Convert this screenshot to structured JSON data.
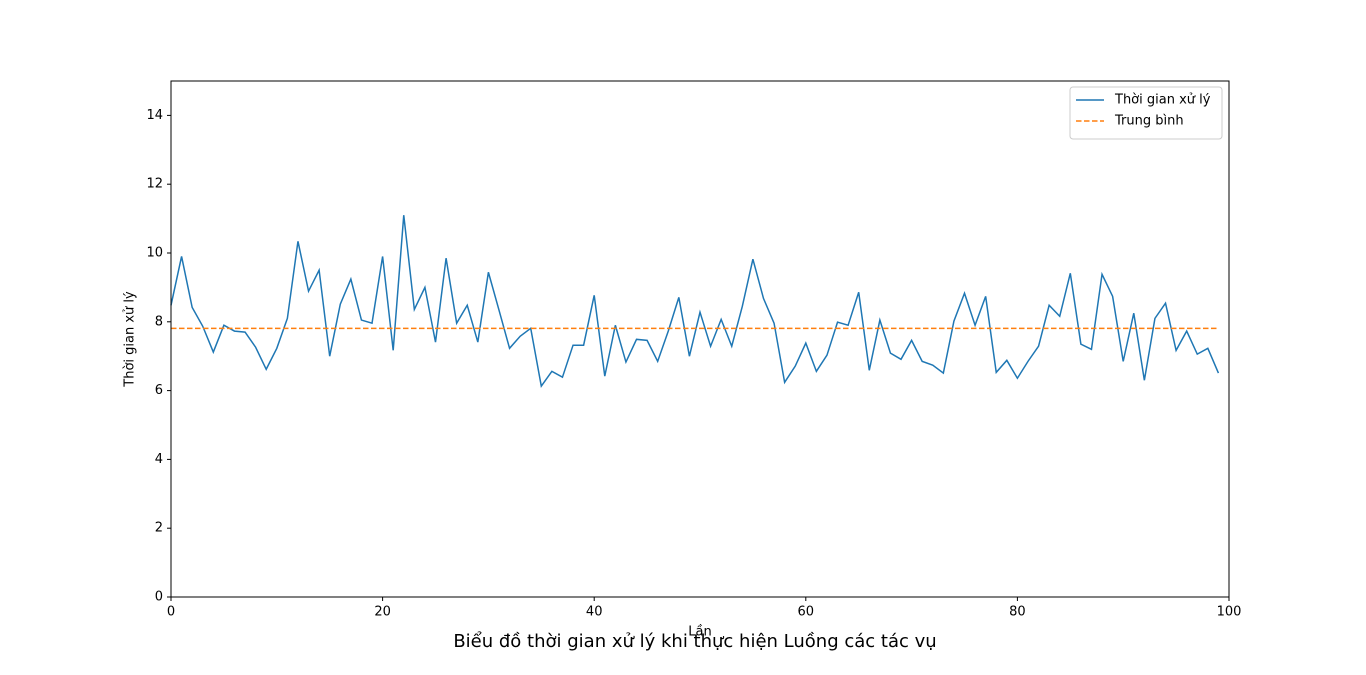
{
  "chart_data": {
    "type": "line",
    "title": "Biểu đồ thời gian xử lý khi thực hiện Luồng các tác vụ",
    "xlabel": "Lần",
    "ylabel": "Thời gian xử lý",
    "x": [
      0,
      1,
      2,
      3,
      4,
      5,
      6,
      7,
      8,
      9,
      10,
      11,
      12,
      13,
      14,
      15,
      16,
      17,
      18,
      19,
      20,
      21,
      22,
      23,
      24,
      25,
      26,
      27,
      28,
      29,
      30,
      31,
      32,
      33,
      34,
      35,
      36,
      37,
      38,
      39,
      40,
      41,
      42,
      43,
      44,
      45,
      46,
      47,
      48,
      49,
      50,
      51,
      52,
      53,
      54,
      55,
      56,
      57,
      58,
      59,
      60,
      61,
      62,
      63,
      64,
      65,
      66,
      67,
      68,
      69,
      70,
      71,
      72,
      73,
      74,
      75,
      76,
      77,
      78,
      79,
      80,
      81,
      82,
      83,
      84,
      85,
      86,
      87,
      88,
      89,
      90,
      91,
      92,
      93,
      94,
      95,
      96,
      97,
      98,
      99
    ],
    "series": [
      {
        "name": "Thời gian xử lý",
        "color": "#1f77b4",
        "values": [
          8.48,
          9.9,
          8.42,
          7.87,
          7.12,
          7.9,
          7.73,
          7.7,
          7.26,
          6.62,
          7.23,
          8.1,
          10.34,
          8.89,
          9.5,
          7.0,
          8.51,
          9.24,
          8.05,
          7.96,
          9.9,
          7.17,
          11.1,
          8.36,
          9.0,
          7.41,
          9.85,
          7.96,
          8.48,
          7.41,
          9.44,
          8.34,
          7.23,
          7.58,
          7.81,
          6.13,
          6.56,
          6.39,
          7.32,
          7.32,
          8.77,
          6.42,
          7.9,
          6.83,
          7.49,
          7.46,
          6.85,
          7.73,
          8.71,
          7.0,
          8.28,
          7.29,
          8.07,
          7.29,
          8.45,
          9.82,
          8.68,
          7.96,
          6.24,
          6.71,
          7.38,
          6.56,
          7.03,
          7.99,
          7.9,
          8.86,
          6.59,
          8.05,
          7.09,
          6.91,
          7.46,
          6.85,
          6.74,
          6.51,
          8.02,
          8.83,
          7.9,
          8.74,
          6.53,
          6.88,
          6.36,
          6.85,
          7.29,
          8.48,
          8.16,
          9.41,
          7.35,
          7.2,
          9.38,
          8.74,
          6.85,
          8.25,
          6.3,
          8.1,
          8.54,
          7.17,
          7.73,
          7.06,
          7.23,
          6.51
        ]
      }
    ],
    "mean": {
      "name": "Trung bình",
      "color": "#ff7f0e",
      "value": 7.81
    },
    "xlim": [
      0,
      100
    ],
    "xticks": [
      0,
      20,
      40,
      60,
      80,
      100
    ],
    "ylim": [
      0,
      15
    ],
    "yticks": [
      0,
      2,
      4,
      6,
      8,
      10,
      12,
      14
    ],
    "legend": "upper right",
    "grid": false
  }
}
